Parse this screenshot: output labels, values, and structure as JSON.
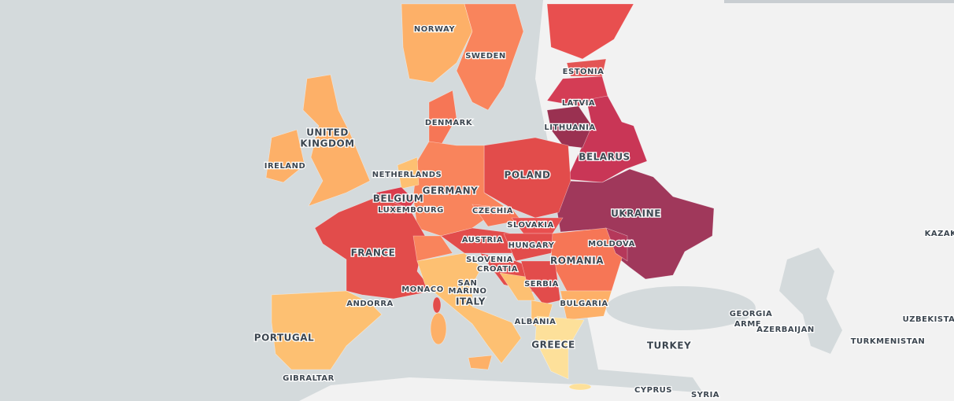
{
  "labels": [
    "NORWAY",
    "SWEDEN",
    "ESTONIA",
    "LATVIA",
    "LITHUANIA",
    "DENMARK",
    "UNITED",
    "KINGDOM",
    "IRELAND",
    "NETHERLANDS",
    "BELARUS",
    "POLAND",
    "GERMANY",
    "BELGIUM",
    "LUXEMBOURG",
    "CZECHIA",
    "UKRAINE",
    "SLOVAKIA",
    "AUSTRIA",
    "MOLDOVA",
    "FRANCE",
    "HUNGARY",
    "SLOVENIA",
    "CROATIA",
    "ROMANIA",
    "SAN",
    "MARINO",
    "MONACO",
    "SERBIA",
    "ITALY",
    "BULGARIA",
    "ANDORRA",
    "ALBANIA",
    "GEORGIA",
    "ARME",
    "AZERBAIJAN",
    "UZBEKISTA",
    "TURKMENISTAN",
    "KAZAK",
    "PORTUGAL",
    "GREECE",
    "TURKEY",
    "CYPRUS",
    "SYRIA",
    "GIBRALTAR"
  ]
}
